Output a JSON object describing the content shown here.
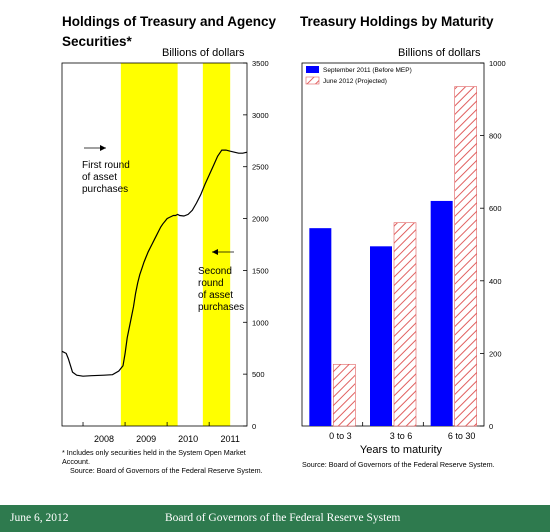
{
  "left_panel": {
    "title_line1": "Holdings of Treasury and Agency",
    "title_line2": "Securities*",
    "unit": "Billions of dollars",
    "footnote_line1": "* Includes only securities held in the System Open Market",
    "footnote_line2": "Account.",
    "source": "Source:  Board of Governors of the Federal Reserve System."
  },
  "right_panel": {
    "title": "Treasury Holdings by Maturity",
    "unit": "Billions of dollars",
    "source": "Source:  Board of Governors of the Federal Reserve System."
  },
  "footer": {
    "date": "June 6, 2012",
    "organization": "Board of Governors of the Federal Reserve System"
  },
  "colors": {
    "highlight": "#ffff00",
    "sep2011": "#0000ff",
    "projected_hatch": "#e06060",
    "footer_bg": "#2e7a4e"
  },
  "chart_data": [
    {
      "type": "line",
      "title": "Holdings of Treasury and Agency Securities*",
      "ylabel": "Billions of dollars",
      "y_axis_side": "right",
      "ylim": [
        0,
        3500
      ],
      "yticks": [
        0,
        500,
        1000,
        1500,
        2000,
        2500,
        3000,
        3500
      ],
      "xlim": [
        2007.5,
        2011.9
      ],
      "xtick_labels": [
        "2008",
        "2009",
        "2010",
        "2011"
      ],
      "xtick_positions": [
        2008.0,
        2009.0,
        2010.0,
        2011.0
      ],
      "shaded_periods": [
        {
          "start": 2008.9,
          "end": 2010.25
        },
        {
          "start": 2010.85,
          "end": 2011.5
        }
      ],
      "annotations": [
        {
          "text": [
            "First round",
            "of asset",
            "purchases"
          ],
          "arrow": "right"
        },
        {
          "text": [
            "Second",
            "round",
            "of asset",
            "purchases"
          ],
          "arrow": "left"
        }
      ],
      "series": [
        {
          "x": [
            2007.5,
            2007.6,
            2007.65,
            2007.75,
            2007.85,
            2008.0,
            2008.2,
            2008.5,
            2008.7,
            2008.85,
            2008.95,
            2009.0,
            2009.05,
            2009.1,
            2009.15,
            2009.2,
            2009.25,
            2009.3,
            2009.35,
            2009.4,
            2009.45,
            2009.5,
            2009.55,
            2009.6,
            2009.65,
            2009.7,
            2009.75,
            2009.8,
            2009.85,
            2009.9,
            2009.95,
            2010.0,
            2010.05,
            2010.1,
            2010.15,
            2010.2,
            2010.25,
            2010.3,
            2010.4,
            2010.5,
            2010.6,
            2010.7,
            2010.8,
            2010.9,
            2011.0,
            2011.1,
            2011.2,
            2011.3,
            2011.4,
            2011.5,
            2011.6,
            2011.7,
            2011.8,
            2011.9
          ],
          "y": [
            720,
            700,
            650,
            520,
            490,
            480,
            485,
            490,
            495,
            530,
            580,
            700,
            850,
            950,
            1050,
            1150,
            1280,
            1380,
            1460,
            1520,
            1580,
            1630,
            1680,
            1720,
            1760,
            1800,
            1840,
            1880,
            1920,
            1950,
            1975,
            2000,
            2010,
            2020,
            2030,
            2030,
            2040,
            2030,
            2025,
            2040,
            2080,
            2150,
            2230,
            2330,
            2420,
            2510,
            2600,
            2660,
            2660,
            2650,
            2640,
            2630,
            2630,
            2640
          ]
        }
      ]
    },
    {
      "type": "bar",
      "title": "Treasury Holdings by Maturity",
      "ylabel": "Billions of dollars",
      "xlabel": "Years to maturity",
      "y_axis_side": "right",
      "ylim": [
        0,
        1000
      ],
      "yticks": [
        0,
        200,
        400,
        600,
        800,
        1000
      ],
      "categories": [
        "0 to 3",
        "3 to 6",
        "6 to 30"
      ],
      "series": [
        {
          "name": "September 2011 (Before MEP)",
          "values": [
            545,
            495,
            620
          ]
        },
        {
          "name": "June 2012 (Projected)",
          "values": [
            170,
            560,
            935
          ]
        }
      ]
    }
  ]
}
